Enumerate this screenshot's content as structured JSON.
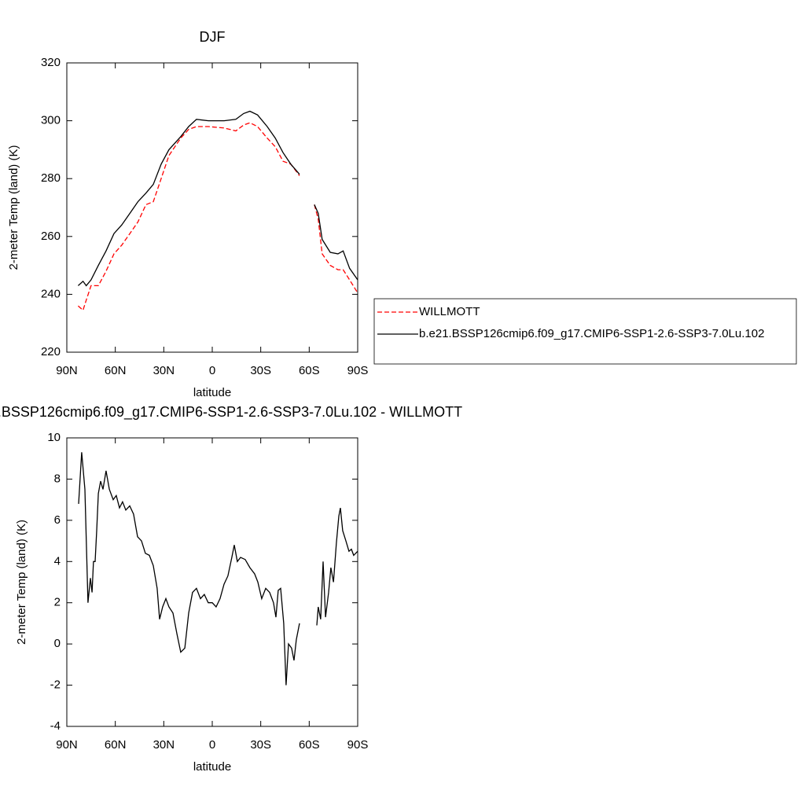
{
  "chart_data": [
    {
      "type": "line",
      "title": "DJF",
      "xlabel": "latitude",
      "ylabel": "2-meter Temp (land) (K)",
      "x": [
        83,
        80,
        78,
        75,
        70.5,
        65.7,
        60.8,
        56,
        51,
        46,
        41,
        36.5,
        31.6,
        26.8,
        19.5,
        14.6,
        9.8,
        2.4,
        -7.3,
        -14.6,
        -19.4,
        -23.3,
        -28,
        -34,
        -39,
        -43.8,
        -48.6,
        -54,
        -58,
        -63.2,
        -65.6,
        -68,
        -73,
        -77.8,
        -81,
        -85,
        -90
      ],
      "series": [
        {
          "name": "WILLMOTT",
          "color": "#ff0000",
          "style": "dashed",
          "values": [
            236,
            234.5,
            238,
            243,
            243,
            248,
            254,
            257,
            261,
            265,
            271,
            272,
            280,
            288,
            294,
            297,
            298,
            298,
            297.5,
            296.5,
            298.5,
            299.3,
            298,
            294,
            291,
            286,
            285,
            281,
            null,
            271,
            266,
            254,
            250,
            248.5,
            248.5,
            245,
            240.5
          ]
        },
        {
          "name": "b.e21.BSSP126cmip6.f09_g17.CMIP6-SSP1-2.6-SSP3-7.0Lu.102",
          "color": "#000000",
          "style": "solid",
          "values": [
            243,
            244.5,
            243,
            245,
            250,
            255,
            261,
            264,
            268,
            272,
            275,
            278,
            285,
            290,
            294.5,
            298,
            300.5,
            300,
            300,
            300.5,
            302.5,
            303.3,
            302,
            298,
            294,
            289,
            285,
            281.5,
            null,
            271,
            268,
            259,
            254.5,
            254,
            255,
            249,
            245
          ]
        }
      ],
      "xlim": [
        90,
        -90
      ],
      "xticks": [
        {
          "value": 90,
          "label": "90N"
        },
        {
          "value": 60,
          "label": "60N"
        },
        {
          "value": 30,
          "label": "30N"
        },
        0,
        {
          "value": -30,
          "label": "30S"
        },
        {
          "value": -60,
          "label": "60S"
        },
        {
          "value": -90,
          "label": "90S"
        }
      ],
      "ylim": [
        220,
        320
      ],
      "yticks": [
        220,
        240,
        260,
        280,
        300,
        320
      ],
      "legend": "right"
    },
    {
      "type": "line",
      "title": "b.e21.BSSP126cmip6.f09_g17.CMIP6-SSP1-2.6-SSP3-7.0Lu.102 - WILLMOTT",
      "xlabel": "latitude",
      "ylabel": "2-meter Temp (land) (K)",
      "x": [
        82.7,
        80.8,
        78.8,
        76.9,
        75.4,
        74.4,
        73.5,
        72.5,
        71.5,
        70.5,
        69.1,
        67.6,
        65.7,
        63.7,
        61.3,
        59.4,
        57.4,
        55.5,
        53.5,
        51.1,
        48.7,
        46.2,
        43.8,
        41.4,
        38.9,
        36.5,
        34.1,
        32.6,
        30.7,
        28.7,
        26.8,
        24.3,
        21.9,
        19.5,
        17,
        14.6,
        12.2,
        9.8,
        7.3,
        4.9,
        2.5,
        0,
        -2.4,
        -4.8,
        -7.3,
        -9.7,
        -12.1,
        -13.6,
        -15.5,
        -17.5,
        -20.4,
        -23.3,
        -26.2,
        -28.2,
        -30.6,
        -33.1,
        -35.5,
        -37.9,
        -39.4,
        -40.8,
        -42.3,
        -44.2,
        -45.7,
        -47.2,
        -49.1,
        -50.6,
        -52,
        -54,
        -58,
        -64.7,
        -65.6,
        -67.1,
        -68.6,
        -70.1,
        -72,
        -73.4,
        -75,
        -76.8,
        -78.3,
        -79.3,
        -80.7,
        -82.7,
        -84.6,
        -86.1,
        -87.5,
        -90
      ],
      "series": [
        {
          "name": "difference",
          "color": "#000000",
          "style": "solid",
          "values": [
            6.8,
            9.3,
            7.5,
            2.0,
            3.2,
            2.5,
            4.0,
            4.0,
            5.5,
            7.3,
            7.9,
            7.5,
            8.4,
            7.5,
            7.0,
            7.2,
            6.6,
            6.9,
            6.5,
            6.7,
            6.3,
            5.2,
            5.0,
            4.4,
            4.3,
            3.8,
            2.7,
            1.2,
            1.8,
            2.2,
            1.8,
            1.5,
            0.5,
            -0.4,
            -0.2,
            1.5,
            2.5,
            2.7,
            2.2,
            2.4,
            2.0,
            2.0,
            1.8,
            2.2,
            2.9,
            3.3,
            4.2,
            4.8,
            4.0,
            4.2,
            4.1,
            3.7,
            3.4,
            3.0,
            2.2,
            2.7,
            2.5,
            2.0,
            1.3,
            2.6,
            2.7,
            1.0,
            -2.0,
            0.0,
            -0.2,
            -0.8,
            0.2,
            1.0,
            null,
            0.9,
            1.8,
            1.2,
            4.0,
            1.3,
            2.5,
            3.7,
            3.0,
            4.9,
            6.2,
            6.6,
            5.5,
            5.0,
            4.5,
            4.6,
            4.3,
            4.5
          ]
        }
      ],
      "xlim": [
        90,
        -90
      ],
      "xticks": [
        {
          "value": 90,
          "label": "90N"
        },
        {
          "value": 60,
          "label": "60N"
        },
        {
          "value": 30,
          "label": "30N"
        },
        0,
        {
          "value": -30,
          "label": "30S"
        },
        {
          "value": -60,
          "label": "60S"
        },
        {
          "value": -90,
          "label": "90S"
        }
      ],
      "ylim": [
        -4,
        10
      ],
      "yticks": [
        -4,
        -2,
        0,
        2,
        4,
        6,
        8,
        10
      ]
    }
  ]
}
